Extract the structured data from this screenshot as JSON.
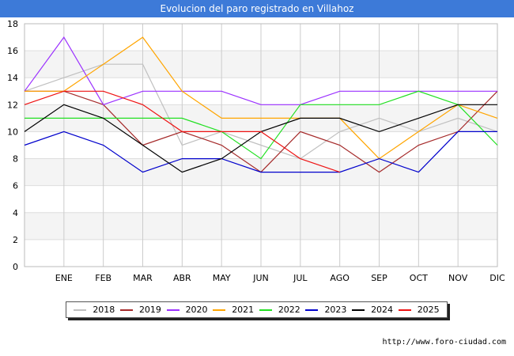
{
  "header": {
    "title": "Evolucion del paro registrado en Villahoz"
  },
  "footer": {
    "url": "http://www.foro-ciudad.com"
  },
  "chart_data": {
    "type": "line",
    "title": "Evolucion del paro registrado en Villahoz",
    "categories": [
      "",
      "ENE",
      "FEB",
      "MAR",
      "ABR",
      "MAY",
      "JUN",
      "JUL",
      "AGO",
      "SEP",
      "OCT",
      "NOV",
      "DIC"
    ],
    "ylim": [
      0,
      18
    ],
    "yticks": [
      0,
      2,
      4,
      6,
      8,
      10,
      12,
      14,
      16,
      18
    ],
    "grid": true,
    "legend_position": "bottom",
    "series": [
      {
        "name": "2018",
        "color": "#c0c0c0",
        "values": [
          13,
          14,
          15,
          15,
          9,
          10,
          9,
          8,
          10,
          11,
          10,
          11,
          10
        ]
      },
      {
        "name": "2019",
        "color": "#a52a2a",
        "values": [
          13,
          13,
          12,
          9,
          10,
          9,
          7,
          10,
          9,
          7,
          9,
          10,
          13
        ]
      },
      {
        "name": "2020",
        "color": "#9b30ff",
        "values": [
          13,
          17,
          12,
          13,
          13,
          13,
          12,
          12,
          13,
          13,
          13,
          13,
          13
        ]
      },
      {
        "name": "2021",
        "color": "#ffa500",
        "values": [
          13,
          13,
          15,
          17,
          13,
          11,
          11,
          11,
          11,
          8,
          10,
          12,
          11
        ]
      },
      {
        "name": "2022",
        "color": "#22e022",
        "values": [
          11,
          11,
          11,
          11,
          11,
          10,
          8,
          12,
          12,
          12,
          13,
          12,
          9
        ]
      },
      {
        "name": "2023",
        "color": "#0000cc",
        "values": [
          9,
          10,
          9,
          7,
          8,
          8,
          7,
          7,
          7,
          8,
          7,
          10,
          10
        ]
      },
      {
        "name": "2024",
        "color": "#000000",
        "values": [
          10,
          12,
          11,
          9,
          7,
          8,
          10,
          11,
          11,
          10,
          11,
          12,
          12
        ]
      },
      {
        "name": "2025",
        "color": "#ee1111",
        "values": [
          12,
          13,
          13,
          12,
          10,
          10,
          10,
          8,
          7,
          null,
          null,
          null,
          null
        ]
      }
    ]
  }
}
